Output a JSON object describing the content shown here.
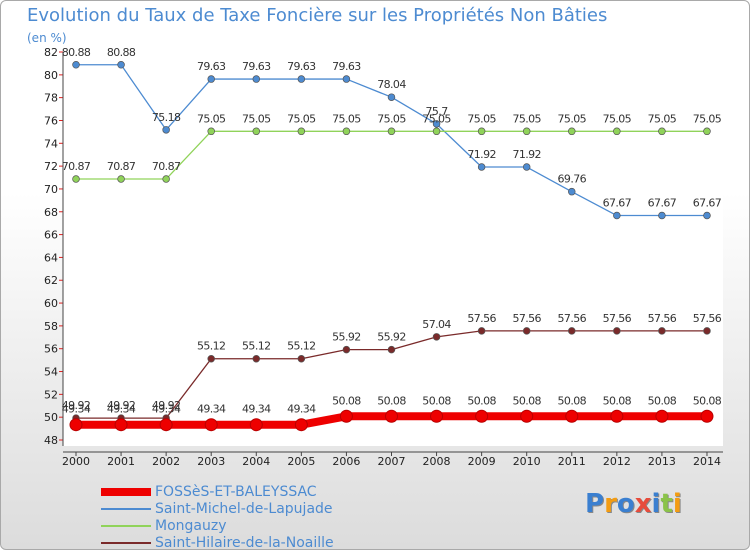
{
  "chart_data": {
    "type": "line",
    "title": "Evolution du Taux de Taxe Foncière sur les Propriétés Non Bâties",
    "ylabel": "(en %)",
    "xlabel": "",
    "ylim": [
      48,
      82
    ],
    "yticks": [
      48,
      50,
      52,
      54,
      56,
      58,
      60,
      62,
      64,
      66,
      68,
      70,
      72,
      74,
      76,
      78,
      80,
      82
    ],
    "categories": [
      "2000",
      "2001",
      "2002",
      "2003",
      "2004",
      "2005",
      "2006",
      "2007",
      "2008",
      "2009",
      "2010",
      "2011",
      "2012",
      "2013",
      "2014"
    ],
    "series": [
      {
        "name": "FOSSèS-ET-BALEYSSAC",
        "color": "#ee0000",
        "values": [
          49.34,
          49.34,
          49.34,
          49.34,
          49.34,
          49.34,
          50.08,
          50.08,
          50.08,
          50.08,
          50.08,
          50.08,
          50.08,
          50.08,
          50.08
        ],
        "labels": [
          "49.34",
          "49.34",
          "49.34",
          "49.34",
          "49.34",
          "49.34",
          "50.08",
          "50.08",
          "50.08",
          "50.08",
          "50.08",
          "50.08",
          "50.08",
          "50.08",
          "50.08"
        ]
      },
      {
        "name": "Saint-Michel-de-Lapujade",
        "color": "#4d8bd1",
        "values": [
          80.88,
          80.88,
          75.18,
          79.63,
          79.63,
          79.63,
          79.63,
          78.04,
          75.7,
          71.92,
          71.92,
          69.76,
          67.67,
          67.67,
          67.67
        ],
        "labels": [
          "80.88",
          "80.88",
          "75.18",
          "79.63",
          "79.63",
          "79.63",
          "79.63",
          "78.04",
          "75.7",
          "71.92",
          "71.92",
          "69.76",
          "67.67",
          "67.67",
          "67.67"
        ]
      },
      {
        "name": "Mongauzy",
        "color": "#90d35a",
        "values": [
          70.87,
          70.87,
          70.87,
          75.05,
          75.05,
          75.05,
          75.05,
          75.05,
          75.05,
          75.05,
          75.05,
          75.05,
          75.05,
          75.05,
          75.05
        ],
        "labels": [
          "70.87",
          "70.87",
          "70.87",
          "75.05",
          "75.05",
          "75.05",
          "75.05",
          "75.05",
          "75.05",
          "75.05",
          "75.05",
          "75.05",
          "75.05",
          "75.05",
          "75.05"
        ]
      },
      {
        "name": "Saint-Hilaire-de-la-Noaille",
        "color": "#7a2a2a",
        "values": [
          49.92,
          49.92,
          49.92,
          55.12,
          55.12,
          55.12,
          55.92,
          55.92,
          57.04,
          57.56,
          57.56,
          57.56,
          57.56,
          57.56,
          57.56
        ],
        "labels": [
          "49.92",
          "49.92",
          "49.92",
          "55.12",
          "55.12",
          "55.12",
          "55.92",
          "55.92",
          "57.04",
          "57.56",
          "57.56",
          "57.56",
          "57.56",
          "57.56",
          "57.56"
        ]
      }
    ]
  },
  "legend": {
    "items": [
      {
        "label": "FOSSèS-ET-BALEYSSAC",
        "color": "#ee0000"
      },
      {
        "label": "Saint-Michel-de-Lapujade",
        "color": "#4d8bd1"
      },
      {
        "label": "Mongauzy",
        "color": "#90d35a"
      },
      {
        "label": "Saint-Hilaire-de-la-Noaille",
        "color": "#7a2a2a"
      }
    ]
  },
  "logo": {
    "letters": [
      "P",
      "r",
      "o",
      "x",
      "i",
      "t",
      "i"
    ],
    "colors": [
      "#3a7fd0",
      "#f39c12",
      "#3a7fd0",
      "#e74c3c",
      "#3a7fd0",
      "#8bc34a",
      "#f39c12"
    ]
  }
}
